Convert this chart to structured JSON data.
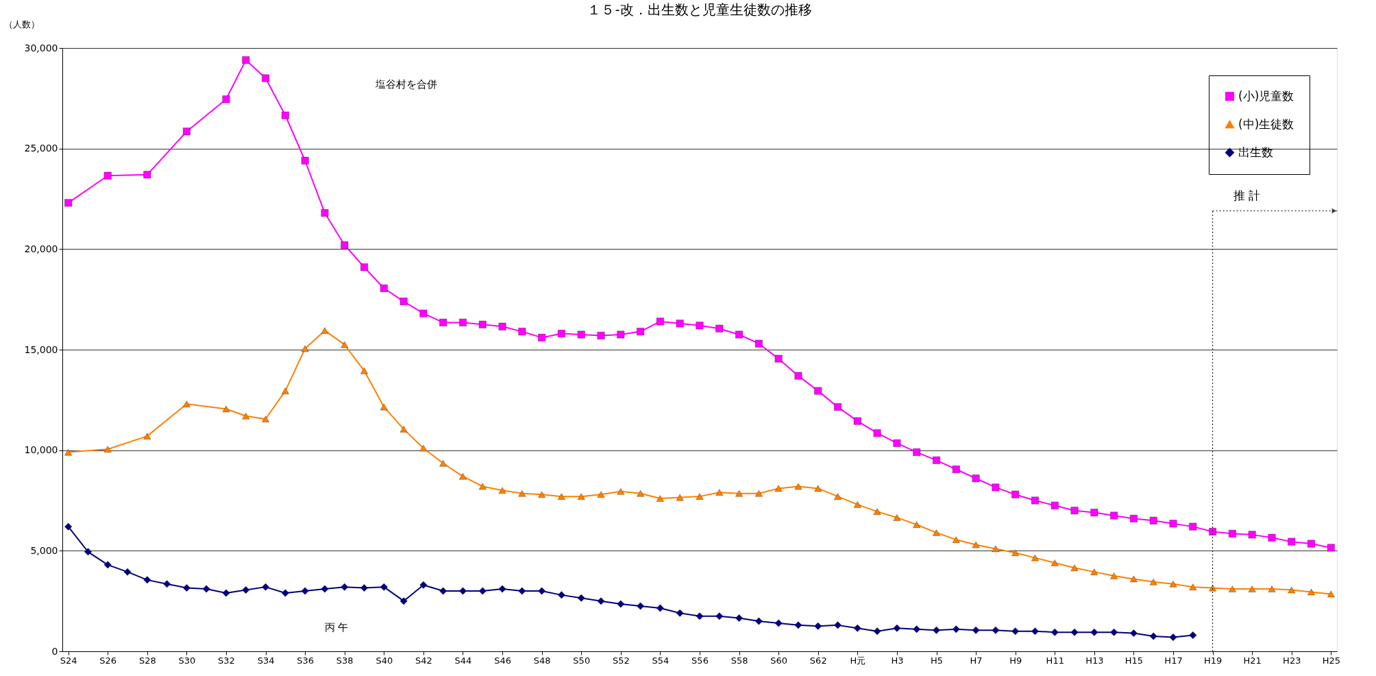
{
  "chart_data": {
    "type": "line",
    "title": "１５-改．出生数と児童生徒数の推移",
    "ylabel": "（人数）",
    "categories": [
      "S24",
      null,
      "S26",
      null,
      "S28",
      null,
      "S30",
      null,
      "S32",
      null,
      "S34",
      null,
      "S36",
      null,
      "S38",
      null,
      "S40",
      null,
      "S42",
      null,
      "S44",
      null,
      "S46",
      null,
      "S48",
      null,
      "S50",
      null,
      "S52",
      null,
      "S54",
      null,
      "S56",
      null,
      "S58",
      null,
      "S60",
      null,
      "S62",
      null,
      "H元",
      null,
      "H3",
      null,
      "H5",
      null,
      "H7",
      null,
      "H9",
      null,
      "H11",
      null,
      "H13",
      null,
      "H15",
      null,
      "H17",
      null,
      "H19",
      null,
      "H21",
      null,
      "H23",
      null,
      "H25"
    ],
    "series": [
      {
        "name": "(小)児童数",
        "color": "#ff00ff",
        "marker": "square",
        "values": [
          22300,
          null,
          23650,
          null,
          23700,
          null,
          25850,
          null,
          27450,
          29400,
          28500,
          26650,
          24400,
          21800,
          20200,
          19100,
          18050,
          17400,
          16800,
          16350,
          16350,
          16250,
          16150,
          15900,
          15600,
          15800,
          15750,
          15700,
          15750,
          15900,
          16400,
          16300,
          16200,
          16050,
          15750,
          15300,
          14550,
          13700,
          12950,
          12150,
          11450,
          10850,
          10350,
          9900,
          9500,
          9050,
          8600,
          8150,
          7800,
          7500,
          7250,
          7000,
          6900,
          6750,
          6600,
          6500,
          6350,
          6200,
          5950,
          5850,
          5800,
          5650,
          5450,
          5350,
          5150
        ]
      },
      {
        "name": "(中)生徒数",
        "color": "#ff8000",
        "marker": "triangle",
        "values": [
          9900,
          null,
          10050,
          null,
          10700,
          null,
          12300,
          null,
          12050,
          11700,
          11550,
          12950,
          15050,
          15950,
          15250,
          13950,
          12150,
          11050,
          10100,
          9350,
          8700,
          8200,
          8000,
          7850,
          7800,
          7700,
          7700,
          7800,
          7950,
          7850,
          7600,
          7650,
          7700,
          7900,
          7850,
          7850,
          8100,
          8200,
          8100,
          7700,
          7300,
          6950,
          6650,
          6300,
          5900,
          5550,
          5300,
          5100,
          4900,
          4650,
          4400,
          4150,
          3950,
          3750,
          3600,
          3450,
          3350,
          3200,
          3150,
          3100,
          3100,
          3100,
          3050,
          2950,
          2850
        ]
      },
      {
        "name": "出生数",
        "color": "#000080",
        "marker": "diamond",
        "values": [
          6200,
          4950,
          4300,
          3950,
          3550,
          3350,
          3150,
          3100,
          2900,
          3050,
          3200,
          2900,
          3000,
          3100,
          3200,
          3150,
          3200,
          2500,
          3300,
          3000,
          3000,
          3000,
          3100,
          3000,
          3000,
          2800,
          2650,
          2500,
          2350,
          2250,
          2150,
          1900,
          1750,
          1750,
          1650,
          1500,
          1400,
          1300,
          1250,
          1300,
          1150,
          1000,
          1150,
          1100,
          1050,
          1100,
          1050,
          1050,
          1000,
          1000,
          950,
          950,
          950,
          950,
          900,
          750,
          700,
          800,
          null,
          null,
          null,
          null,
          null,
          null,
          null
        ]
      }
    ],
    "ylim": [
      0,
      30000
    ],
    "yticks": [
      0,
      {
        "value": 5000,
        "label": "5,000"
      },
      {
        "value": 10000,
        "label": "10,000"
      },
      {
        "value": 15000,
        "label": "15,000"
      },
      {
        "value": 20000,
        "label": "20,000"
      },
      {
        "value": 25000,
        "label": "25,000"
      },
      {
        "value": 30000,
        "label": "30,000"
      }
    ],
    "grid": "y",
    "legend": "top right",
    "annotations": [
      "塩谷村を合併",
      "丙 午"
    ],
    "ref_lines": [
      {
        "axis": "x",
        "value": "H19",
        "label": "推 計",
        "line_style": "dotted"
      }
    ]
  }
}
